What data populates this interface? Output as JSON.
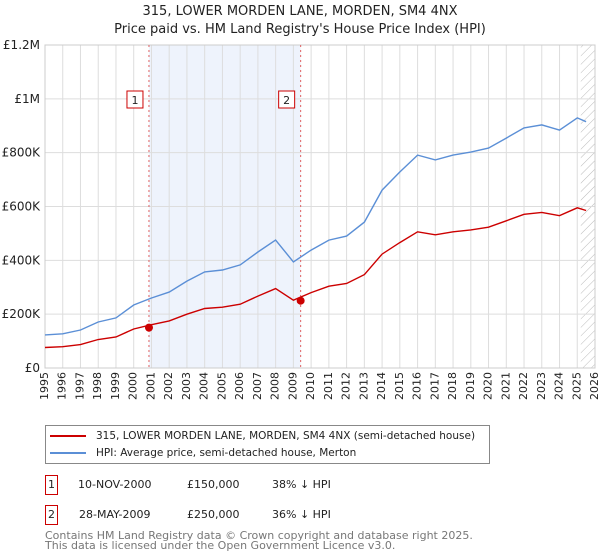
{
  "chart_data": {
    "type": "line",
    "title": "315, LOWER MORDEN LANE, MORDEN, SM4 4NX",
    "subtitle": "Price paid vs. HM Land Registry's House Price Index (HPI)",
    "xlim": [
      1995,
      2026
    ],
    "ylim": [
      0,
      1200000
    ],
    "y_ticks": [
      {
        "v": 0,
        "label": "£0"
      },
      {
        "v": 200000,
        "label": "£200K"
      },
      {
        "v": 400000,
        "label": "£400K"
      },
      {
        "v": 600000,
        "label": "£600K"
      },
      {
        "v": 800000,
        "label": "£800K"
      },
      {
        "v": 1000000,
        "label": "£1M"
      },
      {
        "v": 1200000,
        "label": "£1.2M"
      }
    ],
    "x_ticks": [
      "1995",
      "1996",
      "1997",
      "1998",
      "1999",
      "2000",
      "2001",
      "2002",
      "2003",
      "2004",
      "2005",
      "2006",
      "2007",
      "2008",
      "2009",
      "2010",
      "2011",
      "2012",
      "2013",
      "2014",
      "2015",
      "2016",
      "2017",
      "2018",
      "2019",
      "2020",
      "2021",
      "2022",
      "2023",
      "2024",
      "2025",
      "2026"
    ],
    "x": [
      1995,
      1996,
      1997,
      1998,
      1999,
      2000,
      2001,
      2002,
      2003,
      2004,
      2005,
      2006,
      2007,
      2008,
      2009,
      2010,
      2011,
      2012,
      2013,
      2014,
      2015,
      2016,
      2017,
      2018,
      2019,
      2020,
      2021,
      2022,
      2023,
      2024,
      2025,
      2025.5
    ],
    "series": [
      {
        "name": "315, LOWER MORDEN LANE, MORDEN, SM4 4NX (semi-detached house)",
        "color": "#cc0000",
        "values": [
          76000,
          79000,
          87000,
          106000,
          115000,
          145000,
          161000,
          175000,
          200000,
          221000,
          226000,
          237000,
          267000,
          295000,
          252000,
          280000,
          304000,
          314000,
          347000,
          423000,
          466000,
          506000,
          495000,
          506000,
          513000,
          523000,
          547000,
          571000,
          578000,
          566000,
          595000,
          585000
        ]
      },
      {
        "name": "HPI: Average price, semi-detached house, Merton",
        "color": "#5b8fd6",
        "values": [
          123000,
          127000,
          141000,
          171000,
          186000,
          234000,
          260000,
          282000,
          323000,
          357000,
          364000,
          383000,
          431000,
          475000,
          394000,
          438000,
          475000,
          490000,
          542000,
          661000,
          728000,
          791000,
          773000,
          791000,
          802000,
          817000,
          854000,
          892000,
          903000,
          884000,
          929000,
          915000
        ]
      }
    ],
    "sales": [
      {
        "label": "1",
        "x": 2000.86,
        "price": 150000,
        "date": "10-NOV-2000",
        "price_text": "£150,000",
        "hpi": "38% ↓ HPI"
      },
      {
        "label": "2",
        "x": 2009.41,
        "price": 250000,
        "date": "28-MAY-2009",
        "price_text": "£250,000",
        "hpi": "36% ↓ HPI"
      }
    ],
    "forecast_from": 2025.2,
    "grid": true
  },
  "footer": {
    "line1": "Contains HM Land Registry data © Crown copyright and database right 2025.",
    "line2": "This data is licensed under the Open Government Licence v3.0."
  }
}
